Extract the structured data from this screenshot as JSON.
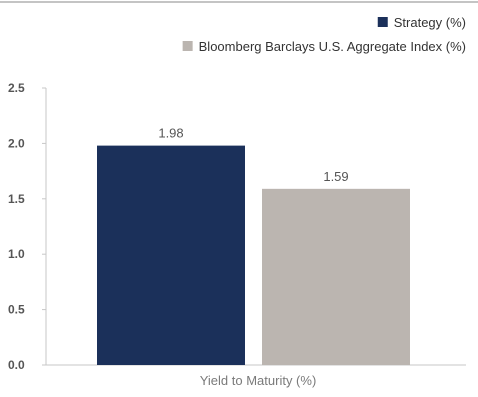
{
  "chart_data": {
    "type": "bar",
    "categories": [
      "Yield to Maturity (%)"
    ],
    "series": [
      {
        "name": "Strategy (%)",
        "values": [
          1.98
        ],
        "color": "#1b305a"
      },
      {
        "name": "Bloomberg Barclays U.S. Aggregate Index (%)",
        "values": [
          1.59
        ],
        "color": "#bbb5b0"
      }
    ],
    "data_labels": [
      "1.98",
      "1.59"
    ],
    "yticks": [
      "0.0",
      "0.5",
      "1.0",
      "1.5",
      "2.0",
      "2.5"
    ],
    "ylim": [
      0,
      2.5
    ],
    "xlabel": "Yield to Maturity (%)",
    "ylabel": "",
    "title": "",
    "grid": false,
    "legend_position": "top-right"
  }
}
